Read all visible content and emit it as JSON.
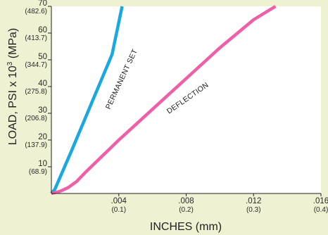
{
  "chart_data": {
    "type": "line",
    "xlabel": "INCHES (mm)",
    "ylabel_main": "LOAD, PSI x 10",
    "ylabel_sup": "3",
    "ylabel_tail": " (MPa)",
    "xlim": [
      0,
      0.016
    ],
    "ylim": [
      0,
      70
    ],
    "grid": false,
    "x_ticks": [
      {
        "value": 0.004,
        "label": ".004",
        "sub": "(0.1)"
      },
      {
        "value": 0.008,
        "label": ".008",
        "sub": "(0.2)"
      },
      {
        "value": 0.012,
        "label": ".012",
        "sub": "(0.3)"
      },
      {
        "value": 0.016,
        "label": ".016",
        "sub": "(0.4)"
      }
    ],
    "y_ticks": [
      {
        "value": 10,
        "label": "10",
        "sub": "(68.9)"
      },
      {
        "value": 20,
        "label": "20",
        "sub": "(137.9)"
      },
      {
        "value": 30,
        "label": "30",
        "sub": "(206.8)"
      },
      {
        "value": 40,
        "label": "40",
        "sub": "(275.8)"
      },
      {
        "value": 50,
        "label": "50",
        "sub": "(344.7)"
      },
      {
        "value": 60,
        "label": "60",
        "sub": "(413.7)"
      },
      {
        "value": 70,
        "label": "70",
        "sub": "(482.6)"
      }
    ],
    "series": [
      {
        "name": "PERMANENT SET",
        "color": "#1aa8df",
        "x": [
          0,
          0.0002,
          0.0012,
          0.0024,
          0.0036,
          0.0042
        ],
        "y": [
          0,
          1.5,
          16,
          34,
          52,
          70
        ]
      },
      {
        "name": "DEFLECTION",
        "color": "#ee5fa7",
        "x": [
          0,
          0.0005,
          0.001,
          0.0015,
          0.002,
          0.004,
          0.006,
          0.008,
          0.01,
          0.012,
          0.0133
        ],
        "y": [
          0,
          0.8,
          2.2,
          4.5,
          7.8,
          20,
          31.5,
          43,
          54.5,
          65,
          70
        ]
      }
    ]
  }
}
